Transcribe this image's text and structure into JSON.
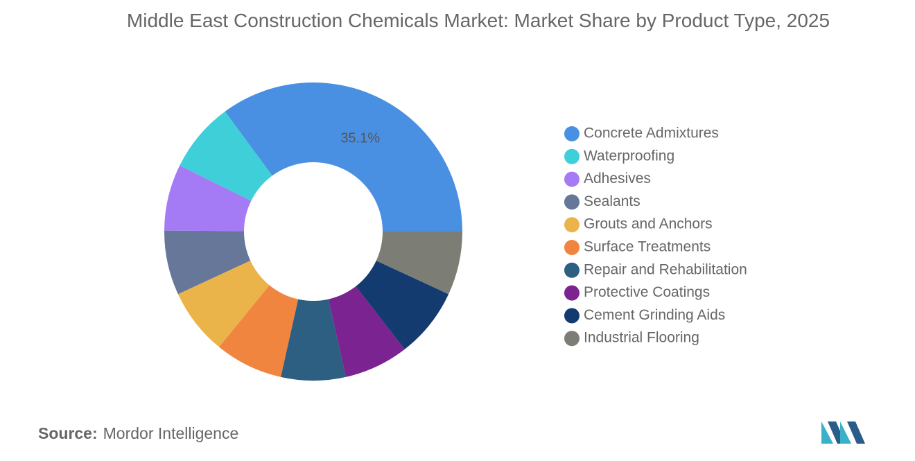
{
  "chart_data": {
    "type": "donut",
    "title": "Middle East Construction Chemicals Market: Market Share by Product Type, 2025",
    "categories": [
      "Concrete Admixtures",
      "Waterproofing",
      "Adhesives",
      "Sealants",
      "Grouts and Anchors",
      "Surface Treatments",
      "Repair and Rehabilitation",
      "Protective Coatings",
      "Cement Grinding Aids",
      "Industrial Flooring"
    ],
    "values": [
      35.1,
      7.6,
      7.2,
      7.0,
      7.2,
      7.4,
      7.0,
      7.0,
      7.6,
      6.9
    ],
    "value_labels": [
      "35.1%",
      null,
      null,
      null,
      null,
      null,
      null,
      null,
      null,
      null
    ],
    "colors": [
      "#4a90e2",
      "#3ecfd8",
      "#a57bf5",
      "#667799",
      "#ebb44a",
      "#f08540",
      "#2d5f82",
      "#7b2390",
      "#143b70",
      "#7c7d74"
    ],
    "legend": "right"
  },
  "source": {
    "label": "Source:",
    "text": "Mordor Intelligence"
  }
}
